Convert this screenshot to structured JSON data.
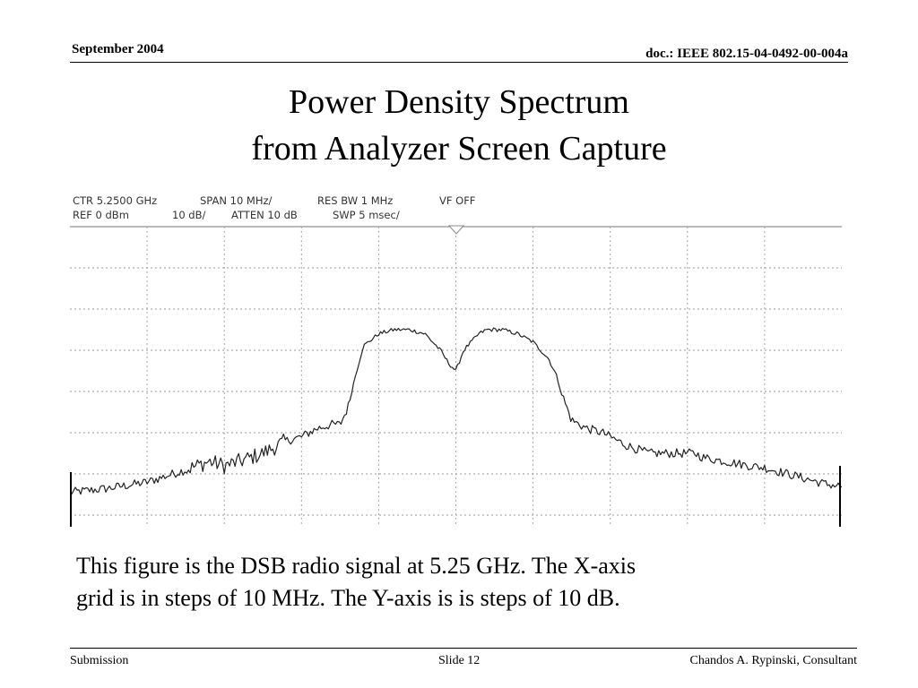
{
  "header": {
    "date": "September 2004",
    "doc_id": "doc.: IEEE 802.15-04-0492-00-004a"
  },
  "slide": {
    "title_line1": "Power Density Spectrum",
    "title_line2": "from Analyzer Screen Capture"
  },
  "analyzer": {
    "readout_line1": {
      "ctr": "CTR  5.2500 GHz",
      "span": "SPAN 10 MHz/",
      "res_bw": "RES BW 1 MHz",
      "vf": "VF OFF"
    },
    "readout_line2": {
      "ref": "REF  0 dBm",
      "scale": "10 dB/",
      "atten": "ATTEN 10 dB",
      "swp": "SWP 5 msec/"
    }
  },
  "chart_data": {
    "type": "line",
    "center_frequency_ghz": 5.25,
    "x_step_mhz": 10,
    "y_step_db": 10,
    "reference_level_dbm": 0,
    "grid": true,
    "x": [
      -50,
      -45,
      -40,
      -35,
      -32,
      -30,
      -28,
      -25,
      -22,
      -20,
      -18,
      -16,
      -15,
      -14,
      -13,
      -12,
      -10,
      -8,
      -6,
      -4,
      -3,
      -2,
      -1,
      0,
      1,
      2,
      3,
      4,
      6,
      8,
      10,
      12,
      13,
      14,
      15,
      16,
      17,
      19,
      20,
      22,
      25,
      28,
      30,
      31,
      32,
      35,
      38,
      40,
      42,
      45,
      48,
      50
    ],
    "y": [
      -64.5,
      -63.5,
      -62,
      -59,
      -57,
      -58,
      -57,
      -55,
      -52,
      -51,
      -49,
      -48,
      -48,
      -44,
      -36,
      -29,
      -26,
      -25,
      -25,
      -26,
      -28,
      -30,
      -33,
      -35,
      -30,
      -28,
      -26,
      -25,
      -25,
      -26,
      -28,
      -32,
      -36,
      -42,
      -47,
      -48,
      -49,
      -50,
      -51,
      -53,
      -55,
      -55,
      -55,
      -55,
      -56,
      -57,
      -58,
      -58.5,
      -59.5,
      -61,
      -62.5,
      -63
    ]
  },
  "caption": {
    "line1": "This figure is the DSB radio signal at 5.25 GHz.  The X-axis",
    "line2": "grid is in steps of 10 MHz.  The Y-axis is is steps of 10 dB."
  },
  "footer": {
    "left": "Submission",
    "center": "Slide 12",
    "right": "Chandos A. Rypinski, Consultant"
  }
}
